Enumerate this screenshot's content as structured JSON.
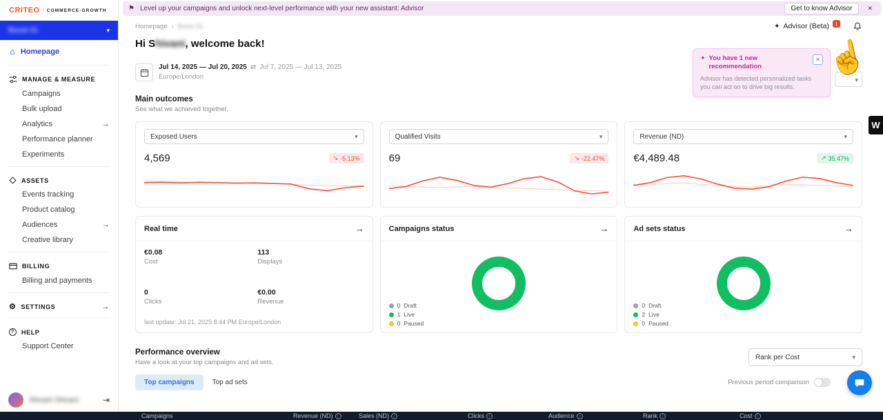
{
  "banner": {
    "text": "Level up your campaigns and unlock next-level performance with your new assistant: Advisor",
    "cta_label": "Get to know Advisor"
  },
  "sidebar": {
    "logo_text": "CRITEO",
    "logo_suffix": "COMMERCE-GROWTH",
    "account_name": "Boost IG",
    "homepage_label": "Homepage",
    "sections": [
      {
        "header": "MANAGE & MEASURE",
        "items": [
          {
            "label": "Campaigns"
          },
          {
            "label": "Bulk upload"
          },
          {
            "label": "Analytics"
          },
          {
            "label": "Performance planner"
          },
          {
            "label": "Experiments"
          }
        ]
      },
      {
        "header": "ASSETS",
        "items": [
          {
            "label": "Events tracking"
          },
          {
            "label": "Product catalog"
          },
          {
            "label": "Audiences"
          },
          {
            "label": "Creative library"
          }
        ]
      },
      {
        "header": "BILLING",
        "items": [
          {
            "label": "Billing and payments"
          }
        ]
      },
      {
        "header": "SETTINGS",
        "items": []
      },
      {
        "header": "HELP",
        "items": [
          {
            "label": "Support Center"
          }
        ]
      }
    ],
    "user_name": "Shivani Shivani"
  },
  "header": {
    "breadcrumb": [
      "Homepage",
      "Boost IG"
    ],
    "advisor_label": "Advisor (Beta)",
    "advisor_badge": "1",
    "greeting_prefix": "Hi S",
    "greeting_blurred": "hivani",
    "greeting_suffix": ", welcome back!"
  },
  "datepicker": {
    "range": "Jul 14, 2025 — Jul 20, 2025",
    "compare_range": "Jul 7, 2025 — Jul 13, 2025",
    "timezone": "Europe/London"
  },
  "advisor_popup": {
    "title": "You have 1 new recommendation",
    "body": "Advisor has detected personalized tasks you can act on to drive big results."
  },
  "main_outcomes": {
    "title": "Main outcomes",
    "subtitle": "See what we achieved together.",
    "cards": [
      {
        "metric": "Exposed Users",
        "value": "4,569",
        "change": "-5.13%",
        "trend": "down"
      },
      {
        "metric": "Qualified Visits",
        "value": "69",
        "change": "-22.47%",
        "trend": "down"
      },
      {
        "metric": "Revenue (ND)",
        "value": "€4,489.48",
        "change": "35.47%",
        "trend": "up"
      }
    ]
  },
  "realtime": {
    "title": "Real time",
    "stats": [
      {
        "value": "€0.08",
        "label": "Cost"
      },
      {
        "value": "113",
        "label": "Displays"
      },
      {
        "value": "0",
        "label": "Clicks"
      },
      {
        "value": "€0.00",
        "label": "Revenue"
      }
    ],
    "footer": "last update: Jul 21, 2025 8:44 PM Europe/London"
  },
  "campaigns_status": {
    "title": "Campaigns status",
    "legend": [
      {
        "count": "0",
        "label": "Draft"
      },
      {
        "count": "1",
        "label": "Live"
      },
      {
        "count": "0",
        "label": "Paused"
      }
    ]
  },
  "adsets_status": {
    "title": "Ad sets status",
    "legend": [
      {
        "count": "0",
        "label": "Draft"
      },
      {
        "count": "2",
        "label": "Live"
      },
      {
        "count": "0",
        "label": "Paused"
      }
    ]
  },
  "performance": {
    "title": "Performance overview",
    "subtitle": "Have a look at your top campaigns and ad sets.",
    "rank_select": "Rank per Cost",
    "tabs": [
      {
        "label": "Top campaigns",
        "active": true
      },
      {
        "label": "Top ad sets",
        "active": false
      }
    ],
    "comparison_label": "Previous period comparison",
    "table_headers": [
      "Campaigns",
      "Revenue (ND)",
      "Sales (ND)",
      "Clicks",
      "Audience",
      "Rank",
      "Cost"
    ]
  },
  "widgets": {
    "feedback_tab": "W"
  },
  "colors": {
    "accent_orange": "#F4581C",
    "primary_blue": "#1C34E8",
    "spark_current": "#FF4A33",
    "spark_previous": "#FFCDC2",
    "donut_green": "#12BE62",
    "badge_negative": "#E2503C",
    "badge_positive": "#18A65A"
  },
  "chart_data": [
    {
      "type": "line",
      "name": "exposed-users-sparkline",
      "series": [
        {
          "name": "current",
          "values": [
            56,
            57,
            55,
            57,
            56,
            54,
            55,
            53,
            51,
            34,
            27,
            38,
            44
          ]
        },
        {
          "name": "previous",
          "values": [
            62,
            60,
            58,
            56,
            57,
            55,
            54,
            52,
            50,
            47,
            45,
            44,
            43
          ]
        }
      ]
    },
    {
      "type": "line",
      "name": "qualified-visits-sparkline",
      "series": [
        {
          "name": "current",
          "values": [
            35,
            42,
            62,
            75,
            64,
            46,
            40,
            52,
            70,
            77,
            58,
            26,
            16,
            22
          ]
        },
        {
          "name": "previous",
          "values": [
            46,
            43,
            40,
            39,
            41,
            42,
            39,
            37,
            35,
            33,
            31,
            28,
            27,
            25
          ]
        }
      ]
    },
    {
      "type": "line",
      "name": "revenue-sparkline",
      "series": [
        {
          "name": "current",
          "values": [
            46,
            56,
            74,
            80,
            69,
            50,
            36,
            33,
            41,
            61,
            75,
            71,
            56,
            46
          ]
        },
        {
          "name": "previous",
          "values": [
            50,
            48,
            52,
            55,
            50,
            45,
            42,
            40,
            45,
            50,
            48,
            46,
            44,
            42
          ]
        }
      ]
    },
    {
      "type": "donut",
      "name": "campaigns-status-donut",
      "values": {
        "draft": 0,
        "live": 1,
        "paused": 0
      }
    },
    {
      "type": "donut",
      "name": "adsets-status-donut",
      "values": {
        "draft": 0,
        "live": 2,
        "paused": 0
      }
    }
  ]
}
